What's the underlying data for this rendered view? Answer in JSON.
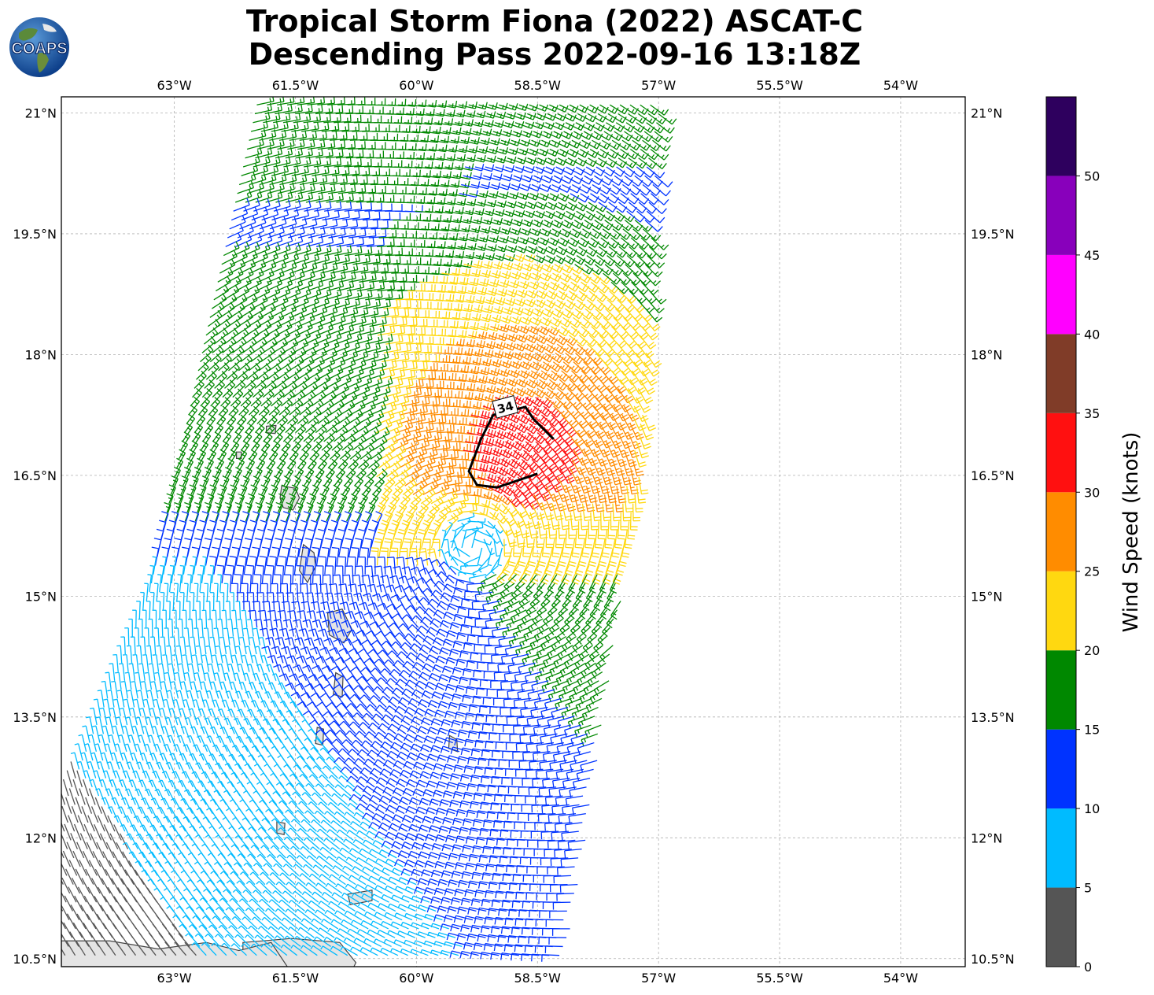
{
  "title": {
    "line1": "Tropical Storm Fiona (2022) ASCAT-C",
    "line2": "Descending Pass 2022-09-16 13:18Z"
  },
  "logo": {
    "text": "COAPS",
    "icon": "globe-logo"
  },
  "map": {
    "lon_range": [
      -64.4,
      -53.2
    ],
    "lat_range": [
      10.4,
      21.2
    ],
    "lon_ticks": [
      {
        "value": -63.0,
        "label": "63°W"
      },
      {
        "value": -61.5,
        "label": "61.5°W"
      },
      {
        "value": -60.0,
        "label": "60°W"
      },
      {
        "value": -58.5,
        "label": "58.5°W"
      },
      {
        "value": -57.0,
        "label": "57°W"
      },
      {
        "value": -55.5,
        "label": "55.5°W"
      },
      {
        "value": -54.0,
        "label": "54°W"
      }
    ],
    "lat_ticks": [
      {
        "value": 21.0,
        "label": "21°N"
      },
      {
        "value": 19.5,
        "label": "19.5°N"
      },
      {
        "value": 18.0,
        "label": "18°N"
      },
      {
        "value": 16.5,
        "label": "16.5°N"
      },
      {
        "value": 15.0,
        "label": "15°N"
      },
      {
        "value": 13.5,
        "label": "13.5°N"
      },
      {
        "value": 12.0,
        "label": "12°N"
      },
      {
        "value": 10.5,
        "label": "10.5°N"
      }
    ],
    "grid": true,
    "storm_center": {
      "lon": -59.3,
      "lat": 15.6
    },
    "contour": {
      "label": "34",
      "points": [
        [
          -58.3,
          16.95
        ],
        [
          -58.55,
          17.2
        ],
        [
          -58.65,
          17.35
        ],
        [
          -59.05,
          17.25
        ],
        [
          -59.2,
          16.95
        ],
        [
          -59.35,
          16.55
        ],
        [
          -59.25,
          16.38
        ],
        [
          -59.0,
          16.35
        ],
        [
          -58.5,
          16.52
        ]
      ]
    },
    "islands": [
      {
        "name": "Guadeloupe",
        "lon": -61.55,
        "lat": 16.22
      },
      {
        "name": "Dominica",
        "lon": -61.35,
        "lat": 15.42
      },
      {
        "name": "Martinique",
        "lon": -61.0,
        "lat": 14.64
      },
      {
        "name": "St Lucia",
        "lon": -60.97,
        "lat": 13.9
      },
      {
        "name": "St Vincent",
        "lon": -61.2,
        "lat": 13.25
      },
      {
        "name": "Barbados",
        "lon": -59.55,
        "lat": 13.17
      },
      {
        "name": "Antigua",
        "lon": -61.8,
        "lat": 17.07
      },
      {
        "name": "Montserrat",
        "lon": -62.2,
        "lat": 16.75
      },
      {
        "name": "Grenada",
        "lon": -61.68,
        "lat": 12.12
      },
      {
        "name": "Trinidad",
        "lon": -61.25,
        "lat": 10.45
      },
      {
        "name": "Tobago",
        "lon": -60.7,
        "lat": 11.25
      }
    ]
  },
  "colorbar": {
    "label": "Wind Speed (knots)",
    "bins": [
      {
        "min": 0,
        "max": 5,
        "color": "#555555"
      },
      {
        "min": 5,
        "max": 10,
        "color": "#00bbff"
      },
      {
        "min": 10,
        "max": 15,
        "color": "#0033ff"
      },
      {
        "min": 15,
        "max": 20,
        "color": "#008800"
      },
      {
        "min": 20,
        "max": 25,
        "color": "#ffd810"
      },
      {
        "min": 25,
        "max": 30,
        "color": "#ff8c00"
      },
      {
        "min": 30,
        "max": 35,
        "color": "#ff1010"
      },
      {
        "min": 35,
        "max": 40,
        "color": "#803c28"
      },
      {
        "min": 40,
        "max": 45,
        "color": "#ff00ff"
      },
      {
        "min": 45,
        "max": 50,
        "color": "#8800bb"
      },
      {
        "min": 50,
        "max": 55,
        "color": "#2e005e"
      }
    ],
    "ticks": [
      "0",
      "5",
      "10",
      "15",
      "20",
      "25",
      "30",
      "35",
      "40",
      "45",
      "50"
    ]
  }
}
